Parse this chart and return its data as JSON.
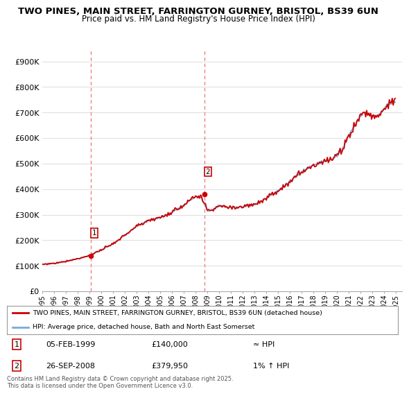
{
  "title_line1": "TWO PINES, MAIN STREET, FARRINGTON GURNEY, BRISTOL, BS39 6UN",
  "title_line2": "Price paid vs. HM Land Registry's House Price Index (HPI)",
  "ylim": [
    0,
    950000
  ],
  "ytick_values": [
    0,
    100000,
    200000,
    300000,
    400000,
    500000,
    600000,
    700000,
    800000,
    900000
  ],
  "ytick_labels": [
    "£0",
    "£100K",
    "£200K",
    "£300K",
    "£400K",
    "£500K",
    "£600K",
    "£700K",
    "£800K",
    "£900K"
  ],
  "sale1_date": "05-FEB-1999",
  "sale1_price": 140000,
  "sale1_label": "≈ HPI",
  "sale2_date": "26-SEP-2008",
  "sale2_price": 379950,
  "sale2_label": "1% ↑ HPI",
  "sale1_x": 1999.09,
  "sale2_x": 2008.73,
  "vline_color": "#e87979",
  "hpi_line_color": "#7aaadd",
  "price_line_color": "#cc0000",
  "background_color": "#ffffff",
  "grid_color": "#dddddd",
  "legend_label_hpi": "HPI: Average price, detached house, Bath and North East Somerset",
  "legend_label_price": "TWO PINES, MAIN STREET, FARRINGTON GURNEY, BRISTOL, BS39 6UN (detached house)",
  "footer_text": "Contains HM Land Registry data © Crown copyright and database right 2025.\nThis data is licensed under the Open Government Licence v3.0.",
  "xtick_years": [
    1995,
    1996,
    1997,
    1998,
    1999,
    2000,
    2001,
    2002,
    2003,
    2004,
    2005,
    2006,
    2007,
    2008,
    2009,
    2010,
    2011,
    2012,
    2013,
    2014,
    2015,
    2016,
    2017,
    2018,
    2019,
    2020,
    2021,
    2022,
    2023,
    2024,
    2025
  ],
  "hpi_anchors": {
    "1995.0": 105000,
    "1996.0": 110000,
    "1997.0": 118000,
    "1998.0": 128000,
    "1999.0": 140000,
    "2000.0": 162000,
    "2001.0": 185000,
    "2002.0": 220000,
    "2003.0": 255000,
    "2004.0": 278000,
    "2005.0": 288000,
    "2006.0": 310000,
    "2007.0": 338000,
    "2007.5": 355000,
    "2008.0": 370000,
    "2008.5": 365000,
    "2009.0": 315000,
    "2009.5": 320000,
    "2010.0": 335000,
    "2011.0": 330000,
    "2012.0": 330000,
    "2013.0": 340000,
    "2014.0": 365000,
    "2015.0": 395000,
    "2016.0": 430000,
    "2017.0": 470000,
    "2018.0": 495000,
    "2019.0": 510000,
    "2019.5": 515000,
    "2020.0": 530000,
    "2020.5": 560000,
    "2021.0": 610000,
    "2021.5": 650000,
    "2022.0": 690000,
    "2022.5": 700000,
    "2023.0": 685000,
    "2023.5": 690000,
    "2024.0": 720000,
    "2024.5": 735000,
    "2025.0": 745000
  }
}
